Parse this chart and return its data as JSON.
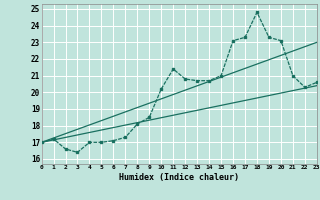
{
  "bg_color": "#c0e4dc",
  "grid_color": "#ffffff",
  "line_color": "#1a7060",
  "xlabel": "Humidex (Indice chaleur)",
  "xlim": [
    0,
    23
  ],
  "ylim": [
    15.7,
    25.3
  ],
  "yticks": [
    16,
    17,
    18,
    19,
    20,
    21,
    22,
    23,
    24,
    25
  ],
  "xticks": [
    0,
    1,
    2,
    3,
    4,
    5,
    6,
    7,
    8,
    9,
    10,
    11,
    12,
    13,
    14,
    15,
    16,
    17,
    18,
    19,
    20,
    21,
    22,
    23
  ],
  "line1_x": [
    0,
    1,
    2,
    3,
    4,
    5,
    6,
    7,
    8,
    9,
    10,
    11,
    12,
    13,
    14,
    15,
    16,
    17,
    18,
    19,
    20,
    21,
    22,
    23
  ],
  "line1_y": [
    17.0,
    17.2,
    16.6,
    16.4,
    17.0,
    17.0,
    17.1,
    17.3,
    18.1,
    18.5,
    20.2,
    21.4,
    20.8,
    20.7,
    20.7,
    21.0,
    23.1,
    23.3,
    24.8,
    23.3,
    23.1,
    21.0,
    20.3,
    20.6
  ],
  "line2_x": [
    0,
    23
  ],
  "line2_y": [
    17.0,
    20.4
  ],
  "line3_x": [
    0,
    23
  ],
  "line3_y": [
    17.0,
    23.0
  ],
  "marker_x": [
    0,
    1,
    2,
    3,
    4,
    5,
    6,
    7,
    8,
    9,
    10,
    11,
    12,
    13,
    14,
    15,
    16,
    17,
    18,
    19,
    20,
    21,
    22,
    23
  ],
  "marker_y": [
    17.0,
    17.2,
    16.6,
    16.4,
    17.0,
    17.0,
    17.1,
    17.3,
    18.1,
    18.5,
    20.2,
    21.4,
    20.8,
    20.7,
    20.7,
    21.0,
    23.1,
    23.3,
    24.8,
    23.3,
    23.1,
    21.0,
    20.3,
    20.6
  ]
}
